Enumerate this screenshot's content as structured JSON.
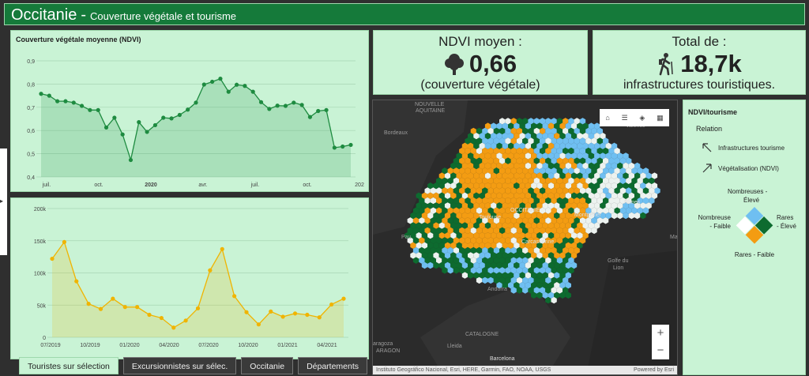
{
  "header": {
    "title": "Occitanie",
    "dash": "-",
    "subtitle": "Couverture végétale et tourisme"
  },
  "ndvi_chart": {
    "title": "Couverture végétale moyenne (NDVI)",
    "y_ticks": [
      "0,9",
      "0,8",
      "0,7",
      "0,6",
      "0,5",
      "0,4"
    ],
    "x_ticks": [
      "juil.",
      "oct.",
      "2020",
      "avr.",
      "juil.",
      "oct.",
      "202"
    ],
    "color": "#1e8b40"
  },
  "tourism_chart": {
    "y_ticks": [
      "200k",
      "150k",
      "100k",
      "50k",
      "0"
    ],
    "x_ticks": [
      "07/2019",
      "10/2019",
      "01/2020",
      "04/2020",
      "07/2020",
      "10/2020",
      "01/2021",
      "04/2021"
    ],
    "color": "#f0b400"
  },
  "chart_data": [
    {
      "type": "line",
      "title": "Couverture végétale moyenne (NDVI)",
      "ylim": [
        0.4,
        0.9
      ],
      "series": [
        {
          "values": [
            0.758,
            0.75,
            0.726,
            0.726,
            0.72,
            0.706,
            0.688,
            0.688,
            0.613,
            0.655,
            0.583,
            0.473,
            0.636,
            0.594,
            0.623,
            0.655,
            0.652,
            0.667,
            0.69,
            0.72,
            0.798,
            0.81,
            0.823,
            0.767,
            0.797,
            0.792,
            0.767,
            0.722,
            0.693,
            0.707,
            0.706,
            0.72,
            0.71,
            0.658,
            0.684,
            0.688,
            0.526,
            0.531,
            0.538
          ]
        }
      ]
    },
    {
      "type": "area",
      "ylim": [
        0,
        200000
      ],
      "series": [
        {
          "values": [
            122000,
            148000,
            87000,
            52000,
            44000,
            60000,
            47000,
            47000,
            35000,
            30000,
            15000,
            26000,
            45000,
            104000,
            137000,
            64000,
            39000,
            20000,
            40000,
            32000,
            37000,
            35000,
            31000,
            51000,
            60000
          ]
        }
      ]
    }
  ],
  "tabs": [
    {
      "label": "Touristes sur sélection",
      "active": true
    },
    {
      "label": "Excursionnistes sur sélec.",
      "active": false
    },
    {
      "label": "Occitanie",
      "active": false
    },
    {
      "label": "Départements",
      "active": false
    }
  ],
  "kpi_ndvi": {
    "title": "NDVI moyen :",
    "value": "0,66",
    "subtitle": "(couverture végétale)",
    "icon": "tree-icon"
  },
  "kpi_infra": {
    "title": "Total de :",
    "value": "18,7k",
    "subtitle": "infrastructures touristiques.",
    "icon": "hiker-icon"
  },
  "map": {
    "labels": {
      "nouvelle": "NOUVELLE",
      "aquitaine": "AQUITAINE",
      "bordeaux": "Bordeaux",
      "valence": "Valence",
      "toulouse": "Toulouse",
      "occitanie": "OCCITANIE",
      "montpellier": "Montpellier",
      "nimes": "Nîmes",
      "pau": "Pau",
      "carcassonne": "Carcassonne",
      "golfe": "Golfe du",
      "lion": "Lion",
      "andorra": "Andorra",
      "catalogne": "CATALOGNE",
      "zaragoza": "aragoza",
      "aragon": "ARAGON",
      "lleida": "Lleida",
      "barcelona": "Barcelona",
      "ma": "Ma"
    },
    "zoom_in": "+",
    "zoom_out": "−",
    "attribution": "Instituto Geográfico Nacional, Esri, HERE, Garmin, FAO, NOAA, USGS",
    "powered": "Powered by Esri",
    "colors": {
      "orange": "#f39c12",
      "blue": "#6fbff1",
      "green": "#0d6b2f",
      "white": "#ecf2ef"
    }
  },
  "legend": {
    "title": "NDVI/tourisme",
    "relation": "Relation",
    "row1": "Infrastructures tourisme",
    "row2": "Végétalisation (NDVI)",
    "top": "Nombreuses -",
    "top2": "Élevé",
    "left": "Nombreuse",
    "left2": "- Faible",
    "right": "Rares",
    "right2": "- Élevé",
    "bottom": "Rares - Faible"
  }
}
